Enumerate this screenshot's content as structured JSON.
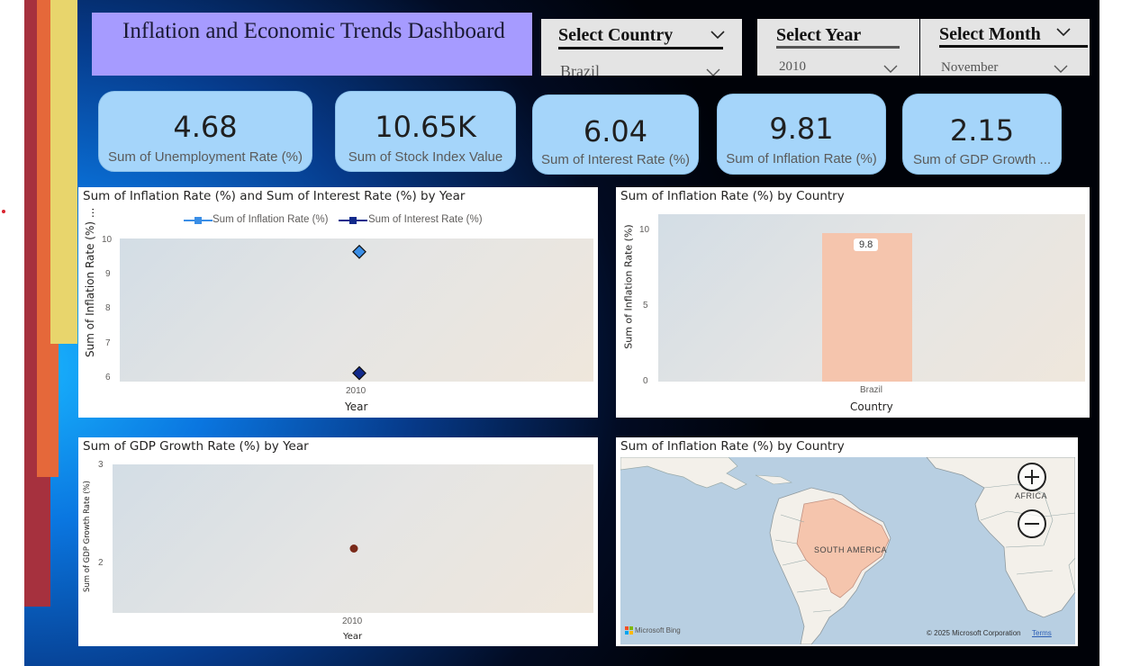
{
  "header": {
    "title": "Inflation and Economic Trends Dashboard"
  },
  "slicers": {
    "country": {
      "label": "Select Country",
      "value": "Brazil"
    },
    "year": {
      "label": "Select Year",
      "value": "2010"
    },
    "month": {
      "label": "Select Month",
      "value": "November"
    }
  },
  "kpis": [
    {
      "value": "4.68",
      "label": "Sum of Unemployment Rate (%)"
    },
    {
      "value": "10.65K",
      "label": "Sum of Stock Index Value"
    },
    {
      "value": "6.04",
      "label": "Sum of Interest Rate (%)"
    },
    {
      "value": "9.81",
      "label": "Sum of Inflation Rate (%)"
    },
    {
      "value": "2.15",
      "label": "Sum of GDP Growth ..."
    }
  ],
  "chart_data": [
    {
      "type": "line",
      "title": "Sum of Inflation Rate (%) and Sum of Interest Rate (%) by Year",
      "x": [
        "2010"
      ],
      "series": [
        {
          "name": "Sum of Inflation Rate (%)",
          "values": [
            9.81
          ],
          "color": "#3a8ee6"
        },
        {
          "name": "Sum of Interest Rate (%)",
          "values": [
            6.04
          ],
          "color": "#122a8c"
        }
      ],
      "xlabel": "Year",
      "ylabel": "Sum of Inflation Rate (%) ...",
      "ylim": [
        6,
        10
      ],
      "yticks": [
        "10",
        "9",
        "8",
        "7",
        "6"
      ],
      "legend": "top-center"
    },
    {
      "type": "bar",
      "title": "Sum of Inflation Rate (%) by Country",
      "categories": [
        "Brazil"
      ],
      "values": [
        9.81
      ],
      "data_labels": [
        "9.8"
      ],
      "xlabel": "Country",
      "ylabel": "Sum of Inflation Rate (%)",
      "ylim": [
        0,
        10
      ],
      "yticks": [
        "10",
        "5",
        "0"
      ],
      "color": "#f5c5ad"
    },
    {
      "type": "scatter",
      "title": "Sum of GDP Growth Rate (%) by Year",
      "x": [
        "2010"
      ],
      "values": [
        2.15
      ],
      "xlabel": "Year",
      "ylabel": "Sum of GDP Growth Rate (%)",
      "ylim": [
        1.5,
        3
      ],
      "yticks": [
        "3",
        "2"
      ],
      "color": "#7a2a1a"
    }
  ],
  "map": {
    "title": "Sum of Inflation Rate (%) by Country",
    "labels": {
      "south_america": "SOUTH AMERICA",
      "africa": "AFRICA"
    },
    "highlighted_country": "Brazil",
    "highlight_color": "#f5c5ad",
    "attribution": "Microsoft Bing",
    "copyright": "© 2025 Microsoft Corporation",
    "terms": "Terms"
  }
}
